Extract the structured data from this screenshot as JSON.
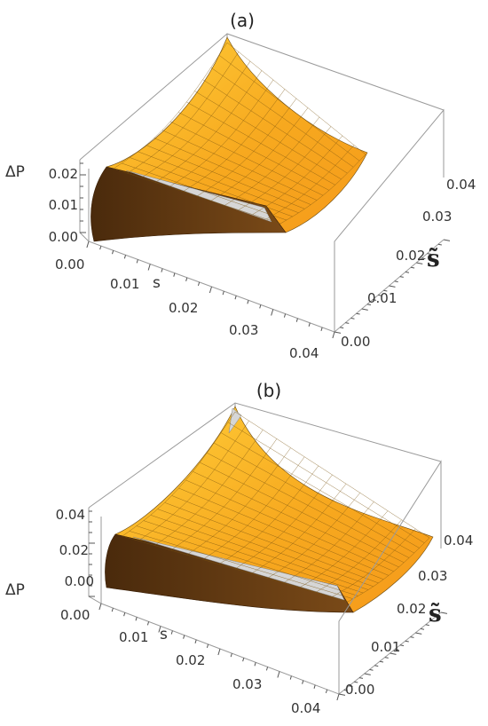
{
  "chart_data": [
    {
      "type": "surface3d",
      "panel_label": "(a)",
      "xlabel": "s",
      "ylabel": "s̃",
      "zlabel": "ΔP",
      "x_ticks": [
        "0.00",
        "0.01",
        "0.02",
        "0.03",
        "0.04"
      ],
      "y_ticks": [
        "0.00",
        "0.01",
        "0.02",
        "0.03",
        "0.04"
      ],
      "z_ticks": [
        "0.00",
        "0.01",
        "0.02"
      ],
      "xlim": [
        0,
        0.04
      ],
      "ylim": [
        0,
        0.04
      ],
      "zlim": [
        0,
        0.025
      ],
      "colors": {
        "surface_light": "#ffd24a",
        "surface_mid": "#f6a21e",
        "surface_dark": "#6b3e12",
        "box": "#9a9a9a"
      }
    },
    {
      "type": "surface3d",
      "panel_label": "(b)",
      "xlabel": "s",
      "ylabel": "s̃",
      "zlabel": "ΔP",
      "x_ticks": [
        "0.00",
        "0.01",
        "0.02",
        "0.03",
        "0.04"
      ],
      "y_ticks": [
        "0.00",
        "0.01",
        "0.02",
        "0.03",
        "0.04"
      ],
      "z_ticks": [
        "0.00",
        "0.02",
        "0.04"
      ],
      "xlim": [
        0,
        0.04
      ],
      "ylim": [
        0,
        0.04
      ],
      "zlim": [
        -0.01,
        0.045
      ],
      "colors": {
        "surface_light": "#ffd24a",
        "surface_mid": "#f6a21e",
        "surface_dark": "#6b3e12",
        "box": "#9a9a9a"
      }
    }
  ]
}
